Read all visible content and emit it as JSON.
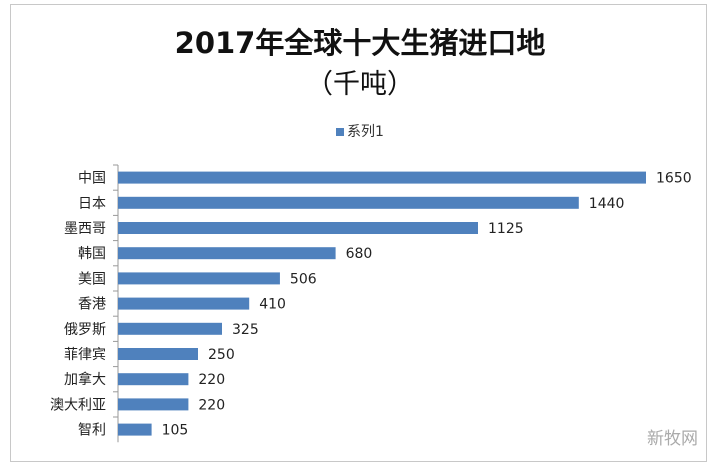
{
  "chart_data": {
    "type": "bar",
    "orientation": "horizontal",
    "title": "2017年全球十大生猪进口地",
    "subtitle": "（千吨）",
    "categories": [
      "中国",
      "日本",
      "墨西哥",
      "韩国",
      "美国",
      "香港",
      "俄罗斯",
      "菲律宾",
      "加拿大",
      "澳大利亚",
      "智利"
    ],
    "series": [
      {
        "name": "系列1",
        "values": [
          1650,
          1440,
          1125,
          680,
          506,
          410,
          325,
          250,
          220,
          220,
          105
        ],
        "color": "#4f81bd"
      }
    ],
    "xlim": [
      0,
      1650
    ],
    "data_labels": true,
    "grid": false,
    "legend_position": "top"
  },
  "watermark": "新牧网"
}
